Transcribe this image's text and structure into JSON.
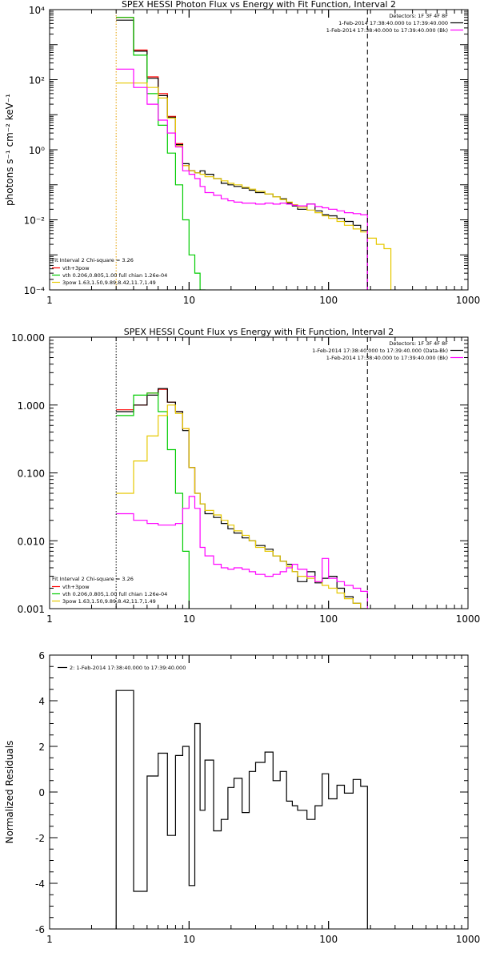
{
  "chart_data": [
    {
      "type": "line",
      "title": "SPEX HESSI Photon Flux vs Energy with Fit Function, Interval 2",
      "xlabel": "",
      "ylabel": "photons s⁻¹ cm⁻² keV⁻¹",
      "xscale": "log",
      "yscale": "log",
      "xlim": [
        1,
        1000
      ],
      "ylim": [
        0.0001,
        10000
      ],
      "x_ticks": [
        {
          "v": 1,
          "label": "1"
        },
        {
          "v": 10,
          "label": "10"
        },
        {
          "v": 100,
          "label": "100"
        },
        {
          "v": 1000,
          "label": "1000"
        }
      ],
      "y_ticks": [
        {
          "v": 0.0001,
          "label": "10⁻⁴"
        },
        {
          "v": 0.01,
          "label": "10⁻²"
        },
        {
          "v": 1,
          "label": "10⁰"
        },
        {
          "v": 100,
          "label": "10²"
        },
        {
          "v": 10000,
          "label": "10⁴"
        }
      ],
      "legend_right": {
        "position": "top-right",
        "lines": [
          {
            "text": "Detectors: 1F 3F 4F 8F",
            "color": ""
          },
          {
            "text": "1-Feb-2014 17:38:40.000 to 17:39:40.000",
            "color": "#000000"
          },
          {
            "text": "1-Feb-2014 17:38:40.000 to 17:39:40.000 (Bk)",
            "color": "#ff00ff"
          }
        ]
      },
      "legend_left": {
        "position": "bottom-left",
        "title": "Fit Interval 2  Chi-square = 3.26",
        "entries": [
          {
            "text": "vth+3pow",
            "color": "#ff0000"
          },
          {
            "text": "vth 0.206,0.805,1.00  full chian 1.26e-04",
            "color": "#00cc00"
          },
          {
            "text": "3pow 1.63,1.50,9.89,8.42,11.7,1.49",
            "color": "#e6c800"
          }
        ]
      },
      "vlines": [
        {
          "x": 3.0,
          "style": "dotted",
          "color": "#e6a000"
        },
        {
          "x": 190,
          "style": "dashed",
          "color": "#000000"
        }
      ],
      "series": [
        {
          "name": "vth+3pow",
          "color": "#ff0000",
          "edges": [
            3.0,
            4.0,
            5.0,
            6.0,
            7.0,
            8.0,
            9.0,
            10.0,
            11.0
          ],
          "values": [
            6000,
            700,
            120,
            40,
            9,
            1.5,
            0.35,
            0.25,
            0.22
          ]
        },
        {
          "name": "",
          "color": "#000000",
          "edges": [
            3.0,
            4.0,
            5.0,
            6.0,
            7.0,
            8.0,
            9.0,
            10.0,
            11.0,
            12.0,
            13.0,
            15.0,
            17.0,
            19.0,
            21.0,
            24.0,
            27.0,
            30.0,
            35.0,
            40.0,
            45.0,
            50.0,
            55.0,
            60.0,
            70.0,
            80.0,
            90.0,
            100.0,
            115.0,
            130.0,
            150.0,
            170.0,
            190.0
          ],
          "values": [
            5000,
            650,
            110,
            35,
            8.5,
            1.4,
            0.4,
            0.25,
            0.22,
            0.25,
            0.2,
            0.15,
            0.11,
            0.1,
            0.09,
            0.08,
            0.07,
            0.06,
            0.055,
            0.045,
            0.04,
            0.03,
            0.025,
            0.02,
            0.028,
            0.018,
            0.014,
            0.013,
            0.011,
            0.009,
            0.007,
            0.005
          ]
        },
        {
          "name": "vth 0.206,0.805,1.00  full chian 1.26e-04",
          "color": "#00cc00",
          "edges": [
            3.0,
            4.0,
            5.0,
            6.0,
            7.0,
            8.0,
            9.0,
            10.0,
            11.0,
            12.0,
            13.0
          ],
          "values": [
            6000,
            500,
            40,
            5,
            0.8,
            0.1,
            0.01,
            0.001,
            0.0003,
            0.0001
          ]
        },
        {
          "name": "3pow 1.63,1.50,9.89,8.42,11.7,1.49",
          "color": "#e6c800",
          "edges": [
            3.0,
            4.0,
            5.0,
            6.0,
            7.0,
            8.0,
            9.0,
            10.0,
            11.0,
            12.0,
            13.0,
            15.0,
            17.0,
            19.0,
            21.0,
            24.0,
            27.0,
            30.0,
            35.0,
            40.0,
            45.0,
            50.0,
            55.0,
            60.0,
            70.0,
            80.0,
            90.0,
            100.0,
            115.0,
            130.0,
            150.0,
            170.0,
            190.0,
            220.0,
            250.0,
            280.0
          ],
          "values": [
            80,
            80,
            60,
            30,
            8,
            1.3,
            0.35,
            0.25,
            0.22,
            0.2,
            0.17,
            0.15,
            0.13,
            0.11,
            0.1,
            0.085,
            0.075,
            0.065,
            0.055,
            0.045,
            0.038,
            0.032,
            0.027,
            0.023,
            0.019,
            0.016,
            0.013,
            0.011,
            0.009,
            0.007,
            0.0055,
            0.0045,
            0.003,
            0.002,
            0.0015
          ]
        },
        {
          "name": "",
          "color": "#ff00ff",
          "edges": [
            3.0,
            4.0,
            5.0,
            6.0,
            7.0,
            8.0,
            9.0,
            10.0,
            11.0,
            12.0,
            13.0,
            15.0,
            17.0,
            19.0,
            21.0,
            24.0,
            27.0,
            30.0,
            35.0,
            40.0,
            45.0,
            50.0,
            55.0,
            60.0,
            70.0,
            80.0,
            90.0,
            100.0,
            115.0,
            130.0,
            150.0,
            170.0,
            190.0
          ],
          "values": [
            200,
            60,
            20,
            7,
            3,
            1.2,
            0.25,
            0.2,
            0.15,
            0.09,
            0.06,
            0.05,
            0.04,
            0.035,
            0.032,
            0.03,
            0.03,
            0.028,
            0.03,
            0.028,
            0.03,
            0.028,
            0.026,
            0.025,
            0.028,
            0.024,
            0.022,
            0.02,
            0.018,
            0.016,
            0.015,
            0.014
          ]
        }
      ]
    },
    {
      "type": "line",
      "title": "SPEX HESSI Count Flux vs Energy with Fit Function, Interval 2",
      "xlabel": "",
      "ylabel": "",
      "xscale": "log",
      "yscale": "log",
      "xlim": [
        1,
        1000
      ],
      "ylim": [
        0.001,
        10
      ],
      "x_ticks": [
        {
          "v": 1,
          "label": "1"
        },
        {
          "v": 10,
          "label": "10"
        },
        {
          "v": 100,
          "label": "100"
        },
        {
          "v": 1000,
          "label": "1000"
        }
      ],
      "y_ticks": [
        {
          "v": 0.001,
          "label": "0.001"
        },
        {
          "v": 0.01,
          "label": "0.010"
        },
        {
          "v": 0.1,
          "label": "0.100"
        },
        {
          "v": 1,
          "label": "1.000"
        },
        {
          "v": 10,
          "label": "10.000"
        }
      ],
      "legend_right": {
        "position": "top-right",
        "lines": [
          {
            "text": "Detectors: 1F 3F 4F 8F",
            "color": ""
          },
          {
            "text": "1-Feb-2014 17:38:40.000 to 17:39:40.000 (Data-Bk)",
            "color": "#000000"
          },
          {
            "text": "1-Feb-2014 17:38:40.000 to 17:39:40.000 (Bk)",
            "color": "#ff00ff"
          }
        ]
      },
      "legend_left": {
        "position": "bottom-left",
        "title": "Fit Interval 2  Chi-square = 3.26",
        "entries": [
          {
            "text": "vth+3pow",
            "color": "#ff0000"
          },
          {
            "text": "vth 0.206,0.805,1.00  full chian 1.26e-04",
            "color": "#00cc00"
          },
          {
            "text": "3pow 1.63,1.50,9.89,8.42,11.7,1.49",
            "color": "#e6c800"
          }
        ]
      },
      "vlines": [
        {
          "x": 3.0,
          "style": "dotted",
          "color": "#000000"
        },
        {
          "x": 190,
          "style": "dashed",
          "color": "#000000"
        }
      ],
      "series": [
        {
          "name": "vth+3pow",
          "color": "#ff0000",
          "edges": [
            3.0,
            4.0,
            5.0,
            6.0,
            7.0,
            8.0,
            9.0,
            10.0,
            11.0
          ],
          "values": [
            0.85,
            1.0,
            1.5,
            1.7,
            1.1,
            0.8,
            0.45,
            0.12,
            0.05
          ]
        },
        {
          "name": "",
          "color": "#000000",
          "edges": [
            3.0,
            4.0,
            5.0,
            6.0,
            7.0,
            8.0,
            9.0,
            10.0,
            11.0,
            12.0,
            13.0,
            15.0,
            17.0,
            19.0,
            21.0,
            24.0,
            27.0,
            30.0,
            35.0,
            40.0,
            45.0,
            50.0,
            55.0,
            60.0,
            70.0,
            80.0,
            90.0,
            100.0,
            115.0,
            130.0,
            150.0,
            170.0,
            190.0
          ],
          "values": [
            0.8,
            1.0,
            1.4,
            1.75,
            1.1,
            0.8,
            0.42,
            0.12,
            0.05,
            0.035,
            0.025,
            0.022,
            0.018,
            0.015,
            0.013,
            0.011,
            0.01,
            0.0085,
            0.0075,
            0.006,
            0.005,
            0.0045,
            0.0035,
            0.0025,
            0.0035,
            0.0024,
            0.0028,
            0.003,
            0.002,
            0.0015,
            0.0012,
            0.001
          ]
        },
        {
          "name": "vth 0.206,0.805,1.00  full chian 1.26e-04",
          "color": "#00cc00",
          "edges": [
            3.0,
            4.0,
            5.0,
            6.0,
            7.0,
            8.0,
            9.0,
            10.0
          ],
          "values": [
            0.7,
            1.4,
            1.5,
            0.8,
            0.22,
            0.05,
            0.007
          ]
        },
        {
          "name": "3pow 1.63,1.50,9.89,8.42,11.7,1.49",
          "color": "#e6c800",
          "edges": [
            3.0,
            4.0,
            5.0,
            6.0,
            7.0,
            8.0,
            9.0,
            10.0,
            11.0,
            12.0,
            13.0,
            15.0,
            17.0,
            19.0,
            21.0,
            24.0,
            27.0,
            30.0,
            35.0,
            40.0,
            45.0,
            50.0,
            55.0,
            60.0,
            70.0,
            80.0,
            90.0,
            100.0,
            115.0,
            130.0,
            150.0,
            170.0,
            190.0
          ],
          "values": [
            0.05,
            0.15,
            0.35,
            0.7,
            1.0,
            0.75,
            0.45,
            0.12,
            0.05,
            0.035,
            0.028,
            0.024,
            0.02,
            0.017,
            0.014,
            0.012,
            0.01,
            0.008,
            0.007,
            0.006,
            0.005,
            0.0042,
            0.0035,
            0.003,
            0.0028,
            0.0025,
            0.0022,
            0.002,
            0.0017,
            0.0014,
            0.0012,
            0.001
          ]
        },
        {
          "name": "",
          "color": "#ff00ff",
          "edges": [
            3.0,
            4.0,
            5.0,
            6.0,
            7.0,
            8.0,
            9.0,
            10.0,
            11.0,
            12.0,
            13.0,
            15.0,
            17.0,
            19.0,
            21.0,
            24.0,
            27.0,
            30.0,
            35.0,
            40.0,
            45.0,
            50.0,
            55.0,
            60.0,
            70.0,
            80.0,
            90.0,
            100.0,
            115.0,
            130.0,
            150.0,
            170.0,
            190.0
          ],
          "values": [
            0.025,
            0.02,
            0.018,
            0.017,
            0.017,
            0.018,
            0.03,
            0.045,
            0.03,
            0.008,
            0.006,
            0.0045,
            0.004,
            0.0038,
            0.004,
            0.0038,
            0.0035,
            0.0032,
            0.003,
            0.0032,
            0.0035,
            0.004,
            0.0045,
            0.0038,
            0.003,
            0.0025,
            0.0055,
            0.0028,
            0.0025,
            0.0022,
            0.002,
            0.0018
          ]
        }
      ]
    },
    {
      "type": "line",
      "title": "",
      "xlabel": "",
      "ylabel": "Normalized Residuals",
      "xscale": "log",
      "yscale": "linear",
      "xlim": [
        1,
        1000
      ],
      "ylim": [
        -6,
        6
      ],
      "x_ticks": [
        {
          "v": 1,
          "label": "1"
        },
        {
          "v": 10,
          "label": "10"
        },
        {
          "v": 100,
          "label": "100"
        },
        {
          "v": 1000,
          "label": "1000"
        }
      ],
      "y_ticks": [
        {
          "v": -6,
          "label": "-6"
        },
        {
          "v": -4,
          "label": "-4"
        },
        {
          "v": -2,
          "label": "-2"
        },
        {
          "v": 0,
          "label": "0"
        },
        {
          "v": 2,
          "label": "2"
        },
        {
          "v": 4,
          "label": "4"
        },
        {
          "v": 6,
          "label": "6"
        }
      ],
      "legend_top": {
        "position": "top-left",
        "entries": [
          {
            "text": "2: 1-Feb-2014 17:38:40.000 to 17:39:40.000",
            "color": "#000000"
          }
        ]
      },
      "vlines": [],
      "series": [
        {
          "name": "2: 1-Feb-2014 17:38:40.000 to 17:39:40.000",
          "color": "#000000",
          "closed_to_bottom": true,
          "edges": [
            3.0,
            4.0,
            5.0,
            6.0,
            7.0,
            8.0,
            9.0,
            10.0,
            11.0,
            12.0,
            13.0,
            15.0,
            17.0,
            19.0,
            21.0,
            24.0,
            27.0,
            30.0,
            35.0,
            40.0,
            45.0,
            50.0,
            55.0,
            60.0,
            70.0,
            80.0,
            90.0,
            100.0,
            115.0,
            130.0,
            150.0,
            170.0,
            190.0
          ],
          "values": [
            4.45,
            -4.35,
            0.7,
            1.7,
            -1.9,
            1.6,
            2.0,
            -4.1,
            3.0,
            -0.8,
            1.4,
            -1.7,
            -1.2,
            0.2,
            0.6,
            -0.9,
            0.9,
            1.3,
            1.75,
            0.5,
            0.9,
            -0.4,
            -0.6,
            -0.8,
            -1.2,
            -0.6,
            0.8,
            -0.3,
            0.3,
            -0.05,
            0.55,
            0.25
          ]
        }
      ]
    }
  ]
}
